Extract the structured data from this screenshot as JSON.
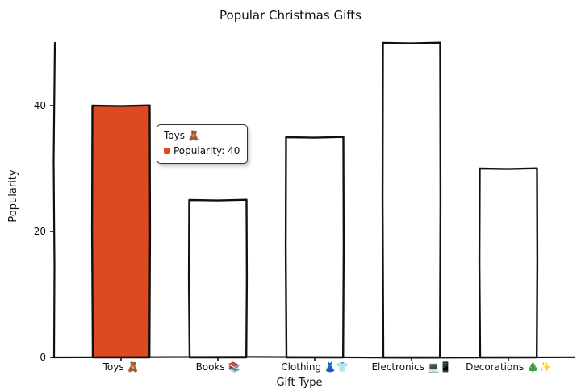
{
  "chart_data": {
    "type": "bar",
    "title": "Popular Christmas Gifts",
    "xlabel": "Gift Type",
    "ylabel": "Popularity",
    "categories": [
      "Toys 🧸",
      "Books 📚",
      "Clothing 👗👕",
      "Electronics 💻📱",
      "Decorations 🎄✨"
    ],
    "series": [
      {
        "name": "Popularity",
        "values": [
          40,
          25,
          35,
          50,
          30
        ]
      }
    ],
    "yticks": [
      0,
      20,
      40
    ],
    "ylim": [
      0,
      50
    ],
    "grid": false,
    "legend": "none",
    "highlight_index": 0,
    "colors": {
      "highlight": "#dd4a22",
      "bar": "#ffffff",
      "outline": "#111111"
    }
  },
  "tooltip": {
    "title": "Toys 🧸",
    "series_name": "Popularity",
    "value_text": "40"
  }
}
